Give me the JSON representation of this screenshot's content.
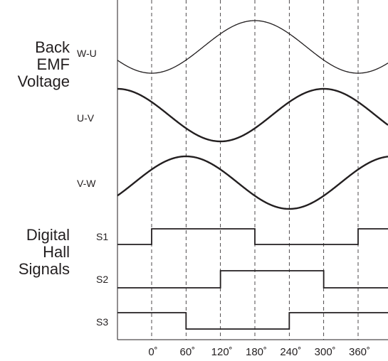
{
  "groups": {
    "emf": [
      "Back",
      "EMF",
      "Voltage"
    ],
    "hall": [
      "Digital",
      "Hall",
      "Signals"
    ]
  },
  "waveforms": [
    {
      "label": "W-U",
      "kind": "sine",
      "phase_deg": 90,
      "stroke": "thin"
    },
    {
      "label": "U-V",
      "kind": "sine",
      "phase_deg": 210,
      "stroke": "thick"
    },
    {
      "label": "V-W",
      "kind": "sine",
      "phase_deg": -30,
      "stroke": "thick"
    }
  ],
  "hall_signals": [
    {
      "label": "S1",
      "high_ranges_deg": [
        [
          0,
          180
        ],
        [
          360,
          420
        ]
      ]
    },
    {
      "label": "S2",
      "high_ranges_deg": [
        [
          120,
          300
        ]
      ]
    },
    {
      "label": "S3",
      "high_ranges_deg": [
        [
          -60,
          60
        ],
        [
          240,
          420
        ]
      ]
    }
  ],
  "degree_marks": [
    0,
    60,
    120,
    180,
    240,
    300,
    360
  ],
  "degree_suffix": "˚",
  "colors": {
    "line": "#231f20",
    "background": "#ffffff"
  }
}
